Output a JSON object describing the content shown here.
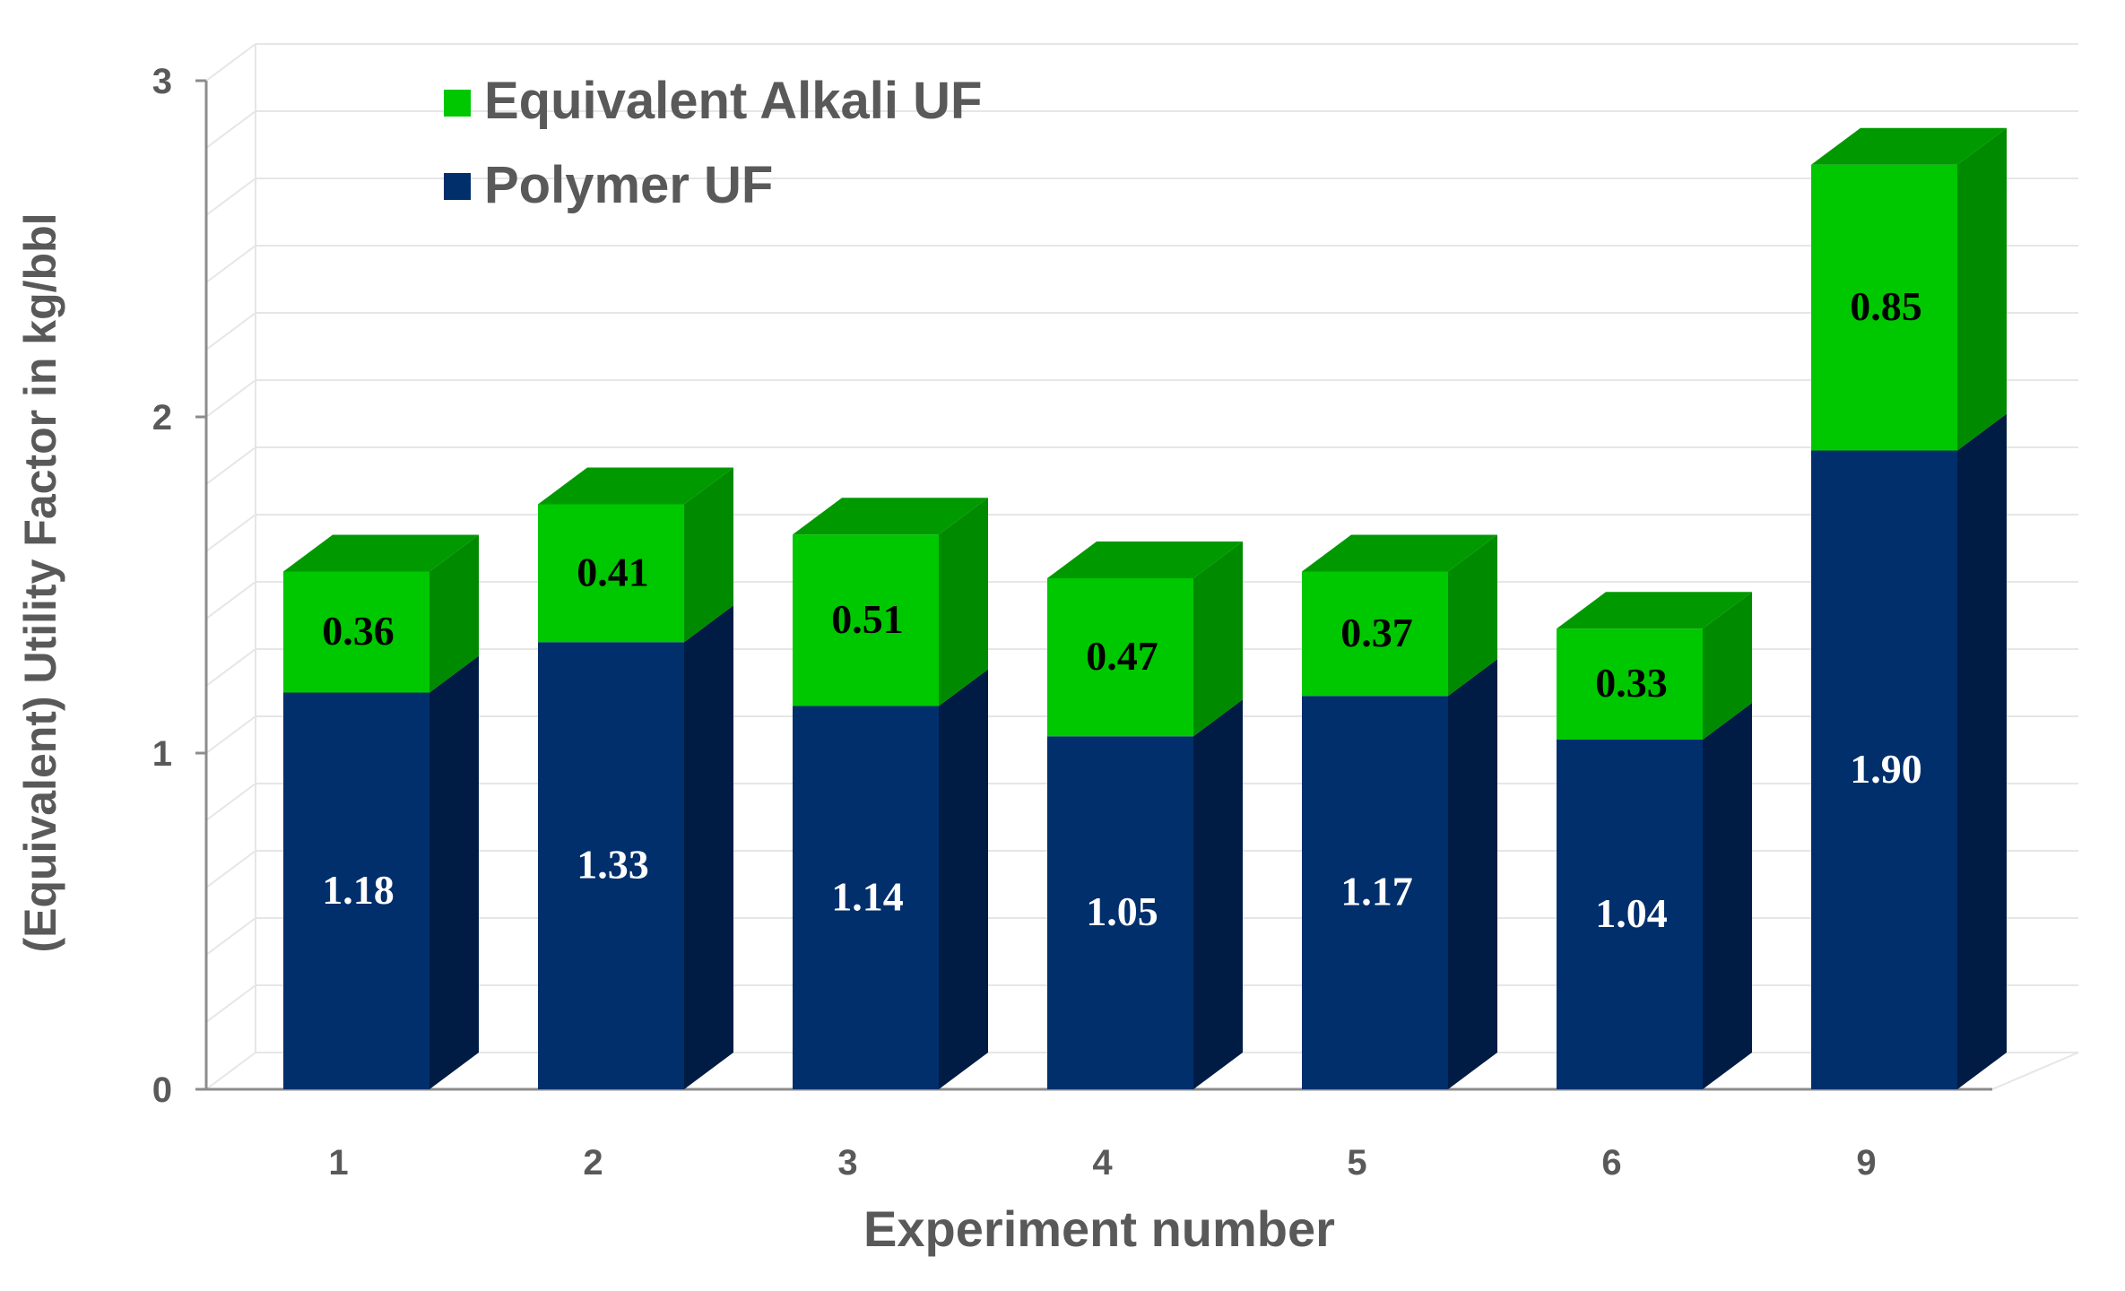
{
  "chart_data": {
    "type": "bar",
    "stacked": true,
    "three_d": true,
    "categories": [
      "1",
      "2",
      "3",
      "4",
      "5",
      "6",
      "9"
    ],
    "series": [
      {
        "name": "Polymer UF",
        "values": [
          1.18,
          1.33,
          1.14,
          1.05,
          1.17,
          1.04,
          1.9
        ],
        "color": "#002f6c",
        "label_color": "#ffffff"
      },
      {
        "name": "Equivalent Alkali UF",
        "values": [
          0.36,
          0.41,
          0.51,
          0.47,
          0.37,
          0.33,
          0.85
        ],
        "color": "#00c800",
        "label_color": "#000000"
      }
    ],
    "value_labels": {
      "Polymer UF": [
        "1.18",
        "1.33",
        "1.14",
        "1.05",
        "1.17",
        "1.04",
        "1.90"
      ],
      "Equivalent Alkali UF": [
        "0.36",
        "0.41",
        "0.51",
        "0.47",
        "0.37",
        "0.33",
        "0.85"
      ]
    },
    "xlabel": "Experiment number",
    "ylabel": "(Equivalent) Utility Factor in kg/bbl",
    "ylim": [
      0,
      3
    ],
    "yticks": [
      "0",
      "1",
      "2",
      "3"
    ],
    "grid": true,
    "legend": {
      "position": "top-left",
      "order": [
        "Equivalent Alkali UF",
        "Polymer UF"
      ]
    }
  },
  "colors": {
    "polymer_front": "#002f6c",
    "polymer_side": "#001c44",
    "alkali_front": "#00c800",
    "alkali_side": "#008a00",
    "alkali_top": "#009a00",
    "grid": "#e6e6e6",
    "axis": "#8c8c8c",
    "text": "#595959"
  }
}
